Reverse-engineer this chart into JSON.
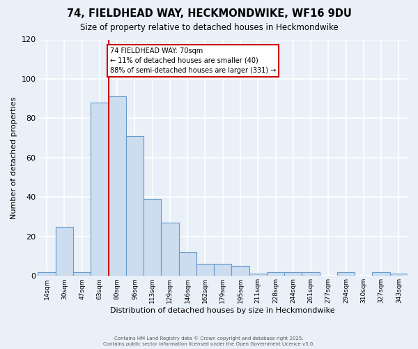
{
  "title": "74, FIELDHEAD WAY, HECKMONDWIKE, WF16 9DU",
  "subtitle": "Size of property relative to detached houses in Heckmondwike",
  "xlabel": "Distribution of detached houses by size in Heckmondwike",
  "ylabel": "Number of detached properties",
  "bin_labels": [
    "14sqm",
    "30sqm",
    "47sqm",
    "63sqm",
    "80sqm",
    "96sqm",
    "113sqm",
    "129sqm",
    "146sqm",
    "162sqm",
    "179sqm",
    "195sqm",
    "211sqm",
    "228sqm",
    "244sqm",
    "261sqm",
    "277sqm",
    "294sqm",
    "310sqm",
    "327sqm",
    "343sqm"
  ],
  "bar_values": [
    2,
    25,
    2,
    88,
    91,
    71,
    39,
    27,
    12,
    6,
    6,
    5,
    1,
    2,
    2,
    2,
    0,
    2,
    0,
    2,
    1
  ],
  "bar_color": "#ccddf0",
  "bar_edge_color": "#6699cc",
  "background_color": "#eaf0f8",
  "grid_color": "#ffffff",
  "annotation_line1": "74 FIELDHEAD WAY: 70sqm",
  "annotation_line2": "← 11% of detached houses are smaller (40)",
  "annotation_line3": "88% of semi-detached houses are larger (331) →",
  "annotation_box_color": "#ffffff",
  "annotation_box_edge": "#cc0000",
  "vline_color": "#cc0000",
  "ylim": [
    0,
    120
  ],
  "yticks": [
    0,
    20,
    40,
    60,
    80,
    100,
    120
  ],
  "n_bins": 21,
  "footer1": "Contains HM Land Registry data © Crown copyright and database right 2025.",
  "footer2": "Contains public sector information licensed under the Open Government Licence v3.0."
}
